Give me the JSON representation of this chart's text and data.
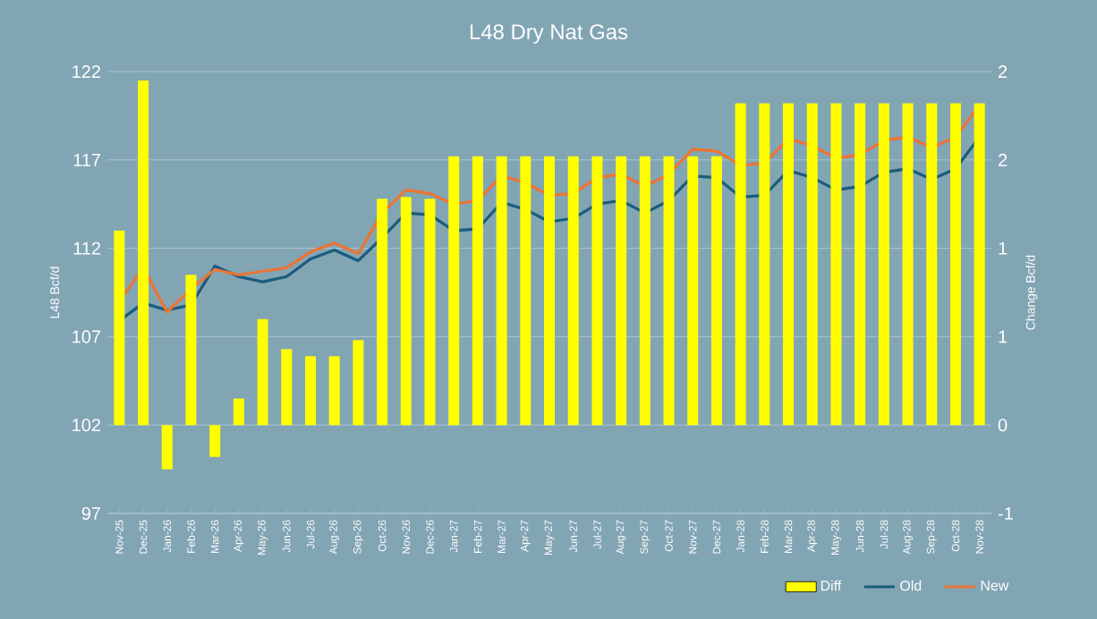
{
  "chart_data": {
    "type": "bar",
    "title": "L48 Dry Nat Gas",
    "ylabel": "L48 Bcf/d",
    "y2label": "Change Bcf/d",
    "categories": [
      "Nov-25",
      "Dec-25",
      "Jan-26",
      "Feb-26",
      "Mar-26",
      "Apr-26",
      "May-26",
      "Jun-26",
      "Jul-26",
      "Aug-26",
      "Sep-26",
      "Oct-26",
      "Nov-26",
      "Dec-26",
      "Jan-27",
      "Feb-27",
      "Mar-27",
      "Apr-27",
      "May-27",
      "Jun-27",
      "Jul-27",
      "Aug-27",
      "Sep-27",
      "Oct-27",
      "Nov-27",
      "Dec-27",
      "Jan-28",
      "Feb-28",
      "Mar-28",
      "Apr-28",
      "May-28",
      "Jun-28",
      "Jul-28",
      "Aug-28",
      "Sep-28",
      "Oct-28",
      "Nov-28"
    ],
    "series": [
      {
        "name": "Diff",
        "axis": "y2",
        "color": "#ffff00",
        "values": [
          1.1,
          1.95,
          -0.25,
          0.85,
          -0.18,
          0.15,
          0.6,
          0.43,
          0.39,
          0.39,
          0.48,
          1.28,
          1.29,
          1.28,
          1.52,
          1.52,
          1.52,
          1.52,
          1.52,
          1.52,
          1.52,
          1.52,
          1.52,
          1.52,
          1.52,
          1.52,
          1.82,
          1.82,
          1.82,
          1.82,
          1.82,
          1.82,
          1.82,
          1.82,
          1.82,
          1.82,
          1.82
        ]
      },
      {
        "name": "Old",
        "type": "line",
        "color": "#1b5c7c",
        "values": [
          107.9,
          108.9,
          108.5,
          108.8,
          111.0,
          110.4,
          110.1,
          110.4,
          111.4,
          111.9,
          111.3,
          112.6,
          114.0,
          113.9,
          113.0,
          113.1,
          114.6,
          114.2,
          113.5,
          113.7,
          114.5,
          114.7,
          114.0,
          114.7,
          116.1,
          116.0,
          114.9,
          115.0,
          116.4,
          116.0,
          115.3,
          115.5,
          116.3,
          116.5,
          115.9,
          116.5,
          118.3
        ]
      },
      {
        "name": "New",
        "type": "line",
        "color": "#ec7434",
        "values": [
          109.0,
          110.9,
          108.4,
          109.7,
          110.8,
          110.5,
          110.7,
          110.9,
          111.8,
          112.3,
          111.7,
          114.0,
          115.3,
          115.1,
          114.5,
          114.7,
          116.1,
          115.7,
          115.0,
          115.1,
          116.0,
          116.2,
          115.5,
          116.2,
          117.6,
          117.5,
          116.7,
          116.8,
          118.2,
          117.8,
          117.1,
          117.3,
          118.1,
          118.3,
          117.7,
          118.3,
          120.1
        ]
      }
    ],
    "ylim": [
      97,
      122
    ],
    "yticks": [
      97,
      102,
      107,
      112,
      117,
      122
    ],
    "y2lim": [
      -0.5,
      2.0
    ],
    "y2ticks": [
      {
        "value": -0.5,
        "label": "-1"
      },
      {
        "value": 0,
        "label": "0"
      },
      {
        "value": 0.5,
        "label": "1"
      },
      {
        "value": 1.0,
        "label": "1"
      },
      {
        "value": 1.5,
        "label": "2"
      },
      {
        "value": 2.0,
        "label": "2"
      }
    ],
    "grid": "y",
    "legend": "bottom right"
  }
}
